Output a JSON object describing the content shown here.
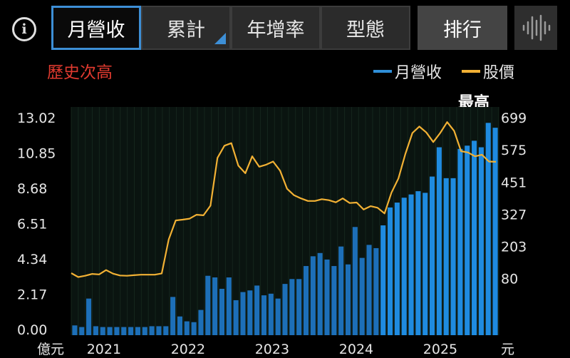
{
  "toolbar": {
    "tabs": [
      {
        "label": "月營收",
        "active": true
      },
      {
        "label": "累計",
        "active": false
      },
      {
        "label": "年增率",
        "active": false
      },
      {
        "label": "型態",
        "active": false
      }
    ],
    "rank_label": "排行",
    "info_icon_glyph": "i"
  },
  "record_label": "歷史次高",
  "max_label": "最高",
  "colors": {
    "bar": "#2f8fd8",
    "line": "#f2b134",
    "accent": "#3d8fd6",
    "record": "#e03a2f"
  },
  "chart_data": {
    "type": "bar",
    "legend": [
      "月營收",
      "股價"
    ],
    "left_unit": "億元",
    "right_unit": "元",
    "left_ticks": [
      "13.02",
      "10.85",
      "8.68",
      "6.51",
      "4.34",
      "2.17",
      "0.00"
    ],
    "right_ticks": [
      "699",
      "575",
      "451",
      "327",
      "203",
      "80"
    ],
    "left_axis_range": [
      0,
      13.02
    ],
    "right_axis_range": [
      -117,
      699
    ],
    "x_tick_labels": [
      "2021",
      "2022",
      "2023",
      "2024",
      "2025"
    ],
    "series": [
      {
        "name": "月營收",
        "unit": "億元",
        "values": [
          0.25,
          0.15,
          1.9,
          0.2,
          0.15,
          0.15,
          0.15,
          0.15,
          0.15,
          0.15,
          0.15,
          0.2,
          0.2,
          0.2,
          2.0,
          0.8,
          0.5,
          0.45,
          1.2,
          3.3,
          3.2,
          2.5,
          3.2,
          1.8,
          2.3,
          2.4,
          2.7,
          2.1,
          2.2,
          1.9,
          2.8,
          3.1,
          3.1,
          3.9,
          4.5,
          4.7,
          4.3,
          3.9,
          5.1,
          4.0,
          6.3,
          4.4,
          5.2,
          5.0,
          6.4,
          7.5,
          7.8,
          8.1,
          8.3,
          8.5,
          8.4,
          9.4,
          11.2,
          9.3,
          9.3,
          11.1,
          11.3,
          11.6,
          11.2,
          12.7,
          12.4
        ]
      },
      {
        "name": "股價",
        "unit": "元",
        "values": [
          100,
          85,
          90,
          97,
          95,
          112,
          98,
          91,
          90,
          92,
          94,
          94,
          94,
          99,
          230,
          303,
          306,
          310,
          325,
          323,
          360,
          544,
          591,
          601,
          514,
          485,
          550,
          510,
          518,
          530,
          495,
          425,
          400,
          388,
          378,
          378,
          385,
          381,
          373,
          388,
          370,
          372,
          345,
          358,
          352,
          330,
          410,
          465,
          560,
          640,
          665,
          642,
          605,
          640,
          682,
          648,
          570,
          565,
          550,
          556,
          530,
          529
        ]
      }
    ]
  }
}
